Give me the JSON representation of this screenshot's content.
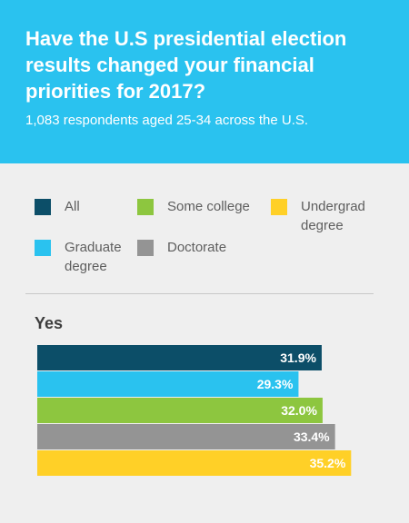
{
  "header": {
    "title": "Have the U.S presidential election results changed your financial priorities for 2017?",
    "subtitle": "1,083 respondents aged 25-34 across the U.S."
  },
  "legend": [
    {
      "label": "All",
      "color": "#0c4e68"
    },
    {
      "label": "Some college",
      "color": "#8dc63f"
    },
    {
      "label": "Undergrad degree",
      "color": "#ffd027"
    },
    {
      "label": "Graduate degree",
      "color": "#2ac2ef"
    },
    {
      "label": "Doctorate",
      "color": "#949494"
    }
  ],
  "chart_data": {
    "type": "bar",
    "orientation": "horizontal",
    "group_label": "Yes",
    "unit": "%",
    "series": [
      {
        "name": "All",
        "value": 31.9,
        "label": "31.9%",
        "color": "#0c4e68"
      },
      {
        "name": "Graduate degree",
        "value": 29.3,
        "label": "29.3%",
        "color": "#2ac2ef"
      },
      {
        "name": "Some college",
        "value": 32.0,
        "label": "32.0%",
        "color": "#8dc63f"
      },
      {
        "name": "Doctorate",
        "value": 33.4,
        "label": "33.4%",
        "color": "#949494"
      },
      {
        "name": "Undergrad degree",
        "value": 35.2,
        "label": "35.2%",
        "color": "#ffd027"
      }
    ]
  }
}
